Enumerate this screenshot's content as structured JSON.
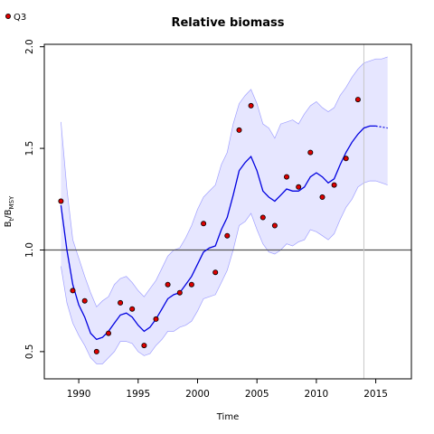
{
  "chart_data": {
    "type": "line",
    "title": "Relative biomass",
    "xlabel": "Time",
    "ylabel": {
      "base": "B",
      "sub1": "t",
      "sep": "/B",
      "sub2": "MSY"
    },
    "xlim": [
      1987.1,
      2018.0
    ],
    "ylim": [
      0.366,
      2.012
    ],
    "x_ticks": [
      1990,
      1995,
      2000,
      2005,
      2010,
      2015
    ],
    "x_tick_labels": [
      "1990",
      "1995",
      "2000",
      "2005",
      "2010",
      "2015"
    ],
    "y_ticks": [
      0.5,
      1.0,
      1.5,
      2.0
    ],
    "y_tick_labels": [
      "0.5",
      "1.0",
      "1.5",
      "2.0"
    ],
    "reference_line_y": 1.0,
    "vertical_line_x": 2014,
    "grid": false,
    "legend": {
      "placement": "top-left",
      "entries": [
        "Q3"
      ]
    },
    "colors": {
      "estimate_line": "#0000e0",
      "ci_band": "#e6e6ff",
      "ci_border": "#a0a0ff",
      "points_fill": "#dd0000",
      "points_edge": "#000000",
      "reference_line": "#555555",
      "vertical_line": "#c8c8c8"
    },
    "series": [
      {
        "name": "Q3",
        "kind": "points",
        "x": [
          1988.5,
          1989.5,
          1990.5,
          1991.5,
          1992.5,
          1993.5,
          1994.5,
          1995.5,
          1996.5,
          1997.5,
          1998.5,
          1999.5,
          2000.5,
          2001.5,
          2002.5,
          2003.5,
          2004.5,
          2005.5,
          2006.5,
          2007.5,
          2008.5,
          2009.5,
          2010.5,
          2011.5,
          2012.5,
          2013.5
        ],
        "y": [
          1.24,
          0.8,
          0.75,
          0.5,
          0.59,
          0.74,
          0.71,
          0.53,
          0.66,
          0.83,
          0.79,
          0.83,
          1.13,
          0.89,
          1.07,
          1.59,
          1.71,
          1.16,
          1.12,
          1.36,
          1.31,
          1.48,
          1.26,
          1.32,
          1.45,
          1.74
        ]
      },
      {
        "kind": "estimate",
        "x": [
          1988.5,
          1989.0,
          1989.5,
          1990.0,
          1990.5,
          1991.0,
          1991.5,
          1992.0,
          1992.5,
          1993.0,
          1993.5,
          1994.0,
          1994.5,
          1995.0,
          1995.5,
          1996.0,
          1996.5,
          1997.0,
          1997.5,
          1998.0,
          1998.5,
          1999.0,
          1999.5,
          2000.0,
          2000.5,
          2001.0,
          2001.5,
          2002.0,
          2002.5,
          2003.0,
          2003.5,
          2004.0,
          2004.5,
          2005.0,
          2005.5,
          2006.0,
          2006.5,
          2007.0,
          2007.5,
          2008.0,
          2008.5,
          2009.0,
          2009.5,
          2010.0,
          2010.5,
          2011.0,
          2011.5,
          2012.0,
          2012.5,
          2013.0,
          2013.5,
          2014.0,
          2014.5,
          2015.0
        ],
        "y": [
          1.22,
          1.0,
          0.83,
          0.73,
          0.67,
          0.59,
          0.56,
          0.57,
          0.6,
          0.64,
          0.68,
          0.69,
          0.67,
          0.63,
          0.6,
          0.62,
          0.66,
          0.71,
          0.76,
          0.78,
          0.79,
          0.83,
          0.87,
          0.93,
          0.99,
          1.01,
          1.02,
          1.1,
          1.16,
          1.27,
          1.39,
          1.43,
          1.46,
          1.39,
          1.29,
          1.26,
          1.24,
          1.27,
          1.3,
          1.29,
          1.29,
          1.31,
          1.36,
          1.38,
          1.36,
          1.33,
          1.35,
          1.42,
          1.48,
          1.53,
          1.57,
          1.6,
          1.61,
          1.61
        ]
      },
      {
        "kind": "prediction",
        "x": [
          2015.0,
          2015.5,
          2016.0
        ],
        "y": [
          1.61,
          1.605,
          1.6
        ]
      },
      {
        "kind": "ci_upper",
        "x": [
          1988.5,
          1989.0,
          1989.5,
          1990.0,
          1990.5,
          1991.0,
          1991.5,
          1992.0,
          1992.5,
          1993.0,
          1993.5,
          1994.0,
          1994.5,
          1995.0,
          1995.5,
          1996.0,
          1996.5,
          1997.0,
          1997.5,
          1998.0,
          1998.5,
          1999.0,
          1999.5,
          2000.0,
          2000.5,
          2001.0,
          2001.5,
          2002.0,
          2002.5,
          2003.0,
          2003.5,
          2004.0,
          2004.5,
          2005.0,
          2005.5,
          2006.0,
          2006.5,
          2007.0,
          2007.5,
          2008.0,
          2008.5,
          2009.0,
          2009.5,
          2010.0,
          2010.5,
          2011.0,
          2011.5,
          2012.0,
          2012.5,
          2013.0,
          2013.5,
          2014.0,
          2014.5,
          2015.0,
          2015.5,
          2016.0
        ],
        "y": [
          1.63,
          1.3,
          1.05,
          0.96,
          0.87,
          0.79,
          0.72,
          0.75,
          0.77,
          0.83,
          0.86,
          0.87,
          0.84,
          0.8,
          0.77,
          0.81,
          0.85,
          0.91,
          0.97,
          1.0,
          1.01,
          1.06,
          1.12,
          1.2,
          1.26,
          1.29,
          1.32,
          1.42,
          1.48,
          1.62,
          1.72,
          1.76,
          1.79,
          1.72,
          1.62,
          1.6,
          1.55,
          1.62,
          1.63,
          1.64,
          1.62,
          1.67,
          1.71,
          1.73,
          1.7,
          1.68,
          1.7,
          1.76,
          1.8,
          1.85,
          1.89,
          1.92,
          1.93,
          1.94,
          1.94,
          1.95
        ]
      },
      {
        "kind": "ci_lower",
        "x": [
          1988.5,
          1989.0,
          1989.5,
          1990.0,
          1990.5,
          1991.0,
          1991.5,
          1992.0,
          1992.5,
          1993.0,
          1993.5,
          1994.0,
          1994.5,
          1995.0,
          1995.5,
          1996.0,
          1996.5,
          1997.0,
          1997.5,
          1998.0,
          1998.5,
          1999.0,
          1999.5,
          2000.0,
          2000.5,
          2001.0,
          2001.5,
          2002.0,
          2002.5,
          2003.0,
          2003.5,
          2004.0,
          2004.5,
          2005.0,
          2005.5,
          2006.0,
          2006.5,
          2007.0,
          2007.5,
          2008.0,
          2008.5,
          2009.0,
          2009.5,
          2010.0,
          2010.5,
          2011.0,
          2011.5,
          2012.0,
          2012.5,
          2013.0,
          2013.5,
          2014.0,
          2014.5,
          2015.0,
          2015.5,
          2016.0
        ],
        "y": [
          0.92,
          0.74,
          0.64,
          0.58,
          0.53,
          0.47,
          0.44,
          0.44,
          0.47,
          0.5,
          0.55,
          0.55,
          0.54,
          0.5,
          0.48,
          0.49,
          0.53,
          0.56,
          0.6,
          0.6,
          0.62,
          0.63,
          0.65,
          0.7,
          0.76,
          0.77,
          0.78,
          0.84,
          0.9,
          1.0,
          1.12,
          1.14,
          1.18,
          1.1,
          1.03,
          0.99,
          0.98,
          1.0,
          1.03,
          1.02,
          1.04,
          1.05,
          1.1,
          1.09,
          1.07,
          1.05,
          1.08,
          1.15,
          1.21,
          1.25,
          1.31,
          1.33,
          1.34,
          1.34,
          1.33,
          1.32
        ]
      }
    ]
  }
}
